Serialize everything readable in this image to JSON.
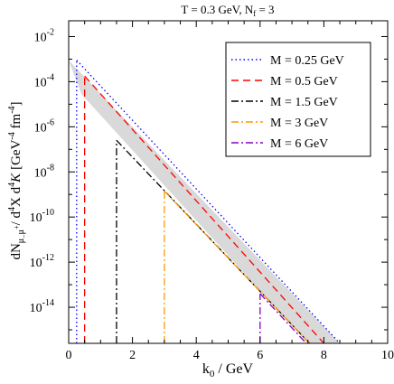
{
  "chart_data": {
    "type": "line",
    "title": "T = 0.3 GeV, N_f = 3",
    "title_parts": {
      "main": "T = 0.3 GeV, N",
      "sub": "f",
      "tail": " = 3"
    },
    "xlabel": "k_0 / GeV",
    "xlabel_parts": {
      "main": "k",
      "sub": "0",
      "tail": " / GeV"
    },
    "ylabel": "dN_{μ⁻μ⁺} / d⁴X d⁴K [GeV⁻⁴ fm⁻⁴]",
    "xlim": [
      0,
      10
    ],
    "ylim_log10": [
      -15.6,
      -1.3
    ],
    "yscale": "log",
    "grid": false,
    "legend_position": "top-right",
    "x_ticks": [
      "0",
      "2",
      "4",
      "6",
      "8",
      "10"
    ],
    "y_ticks": [
      {
        "base": "10",
        "exp": "-2"
      },
      {
        "base": "10",
        "exp": "-4"
      },
      {
        "base": "10",
        "exp": "-6"
      },
      {
        "base": "10",
        "exp": "-8"
      },
      {
        "base": "10",
        "exp": "-10"
      },
      {
        "base": "10",
        "exp": "-12"
      },
      {
        "base": "10",
        "exp": "-14"
      }
    ],
    "band": {
      "upper": [
        [
          0.0,
          -3.05
        ],
        [
          8.5,
          -15.6
        ]
      ],
      "lower": [
        [
          0.4,
          -4.55
        ],
        [
          7.5,
          -15.6
        ]
      ],
      "color": "#d9d9d9"
    },
    "series": [
      {
        "name": "M = 0.25 GeV",
        "color": "#0000ff",
        "dash": "dot",
        "threshold": 0.25,
        "points": [
          [
            0.25,
            -3.05
          ],
          [
            8.5,
            -15.6
          ]
        ]
      },
      {
        "name": "M = 0.5 GeV",
        "color": "#ff0000",
        "dash": "dash",
        "threshold": 0.5,
        "points": [
          [
            0.5,
            -3.75
          ],
          [
            8.0,
            -15.6
          ]
        ]
      },
      {
        "name": "M = 1.5 GeV",
        "color": "#000000",
        "dash": "dashdot",
        "threshold": 1.5,
        "points": [
          [
            1.5,
            -6.6
          ],
          [
            7.55,
            -15.6
          ]
        ]
      },
      {
        "name": "M = 3 GeV",
        "color": "#ff9900",
        "dash": "dashdot",
        "threshold": 3.0,
        "points": [
          [
            3.0,
            -8.85
          ],
          [
            7.55,
            -15.6
          ]
        ]
      },
      {
        "name": "M = 6 GeV",
        "color": "#8b00c8",
        "dash": "dashdot",
        "threshold": 6.0,
        "points": [
          [
            6.0,
            -13.4
          ],
          [
            7.45,
            -15.6
          ]
        ]
      }
    ]
  }
}
